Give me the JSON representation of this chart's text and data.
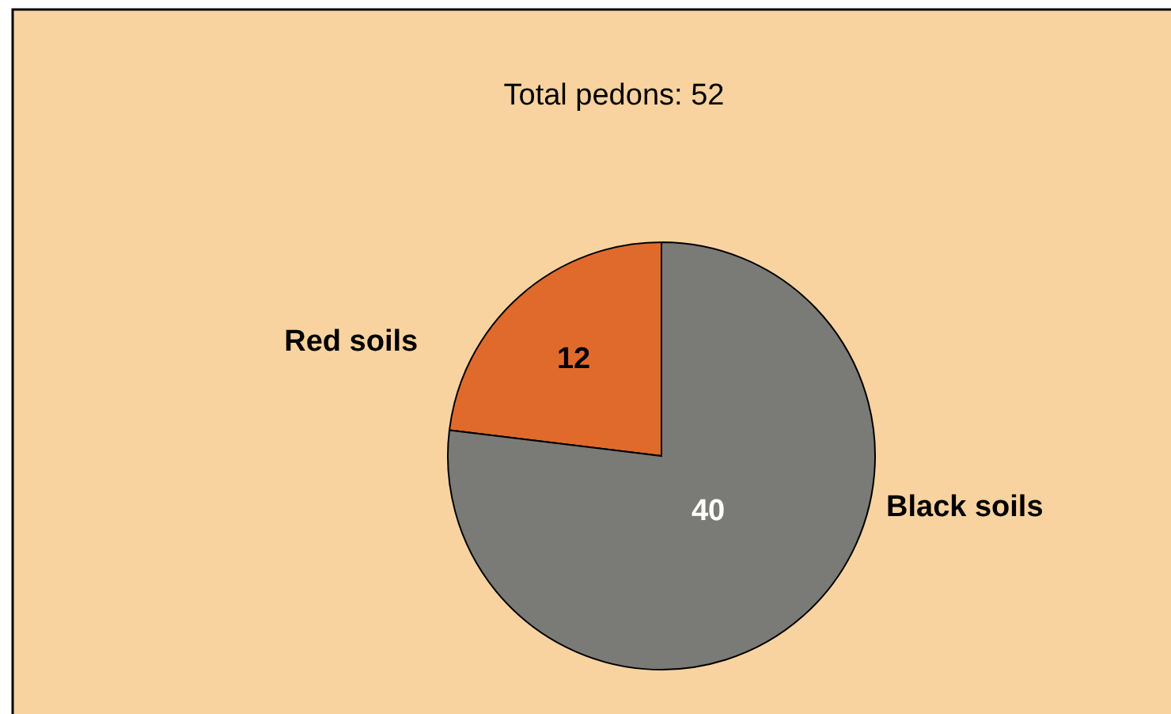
{
  "chart_data": {
    "type": "pie",
    "title": "Total pedons: 52",
    "categories": [
      "Red soils",
      "Black soils"
    ],
    "values": [
      12,
      40
    ],
    "colors": [
      "#e06a2c",
      "#7a7b76"
    ],
    "data_labels": true,
    "legend": false
  }
}
